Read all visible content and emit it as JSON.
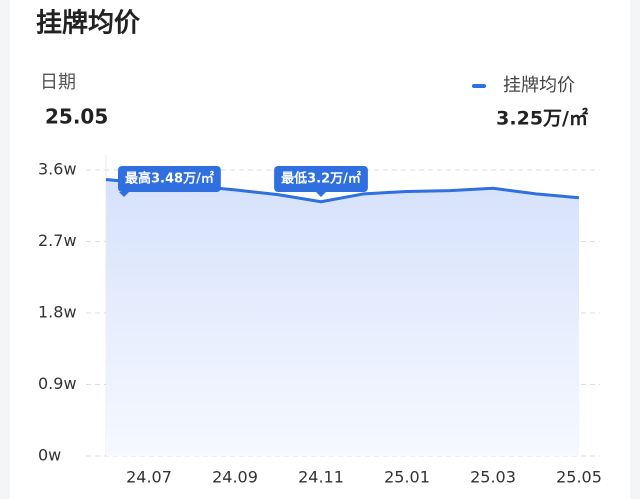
{
  "chart_data": {
    "type": "line",
    "title": "挂牌均价",
    "date_label": "日期",
    "date_value": "25.05",
    "current_value_label": "3.25万/㎡",
    "max_label": "最高3.48万/㎡",
    "min_label": "最低3.2万/㎡",
    "categories": [
      null,
      "24.07",
      null,
      "24.09",
      null,
      "24.11",
      null,
      "25.01",
      null,
      "25.03",
      null,
      "25.05"
    ],
    "series": [
      {
        "name": "挂牌均价",
        "color": "#2f6fe0",
        "values": [
          3.48,
          3.43,
          3.4,
          3.35,
          3.29,
          3.2,
          3.3,
          3.33,
          3.34,
          3.37,
          3.3,
          3.25
        ]
      }
    ],
    "ylim": [
      0,
      3.6
    ],
    "yticks": [
      {
        "value": 0,
        "label": "0w"
      },
      {
        "value": 0.9,
        "label": "0.9w"
      },
      {
        "value": 1.8,
        "label": "1.8w"
      },
      {
        "value": 2.7,
        "label": "2.7w"
      },
      {
        "value": 3.6,
        "label": "3.6w"
      }
    ],
    "grid": true
  }
}
